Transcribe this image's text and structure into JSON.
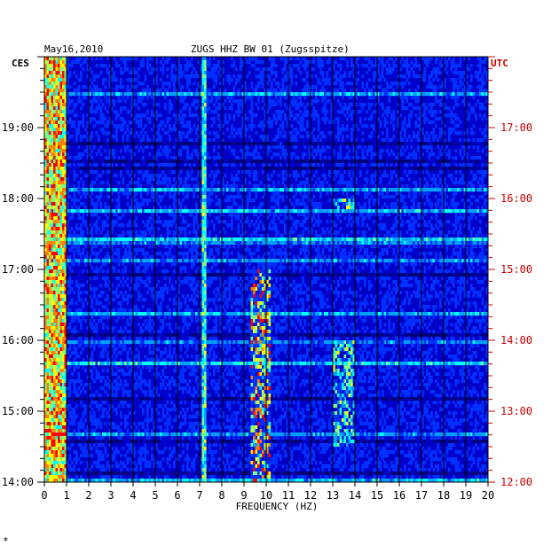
{
  "header": {
    "date": "May16,2010",
    "station": "ZUGS HHZ BW 01 (Zugsspitze)",
    "left_tz": "CES",
    "right_tz": "UTC"
  },
  "footer": {
    "mark": "*"
  },
  "colors": {
    "background": "#0000c8",
    "left_labels": "#000000",
    "right_labels": "#cc0000",
    "grid": "#000000"
  },
  "chart_data": {
    "type": "heatmap",
    "title": "ZUGS HHZ BW 01 (Zugsspitze)",
    "xlabel": "FREQUENCY (HZ)",
    "xlim": [
      0,
      20
    ],
    "x_ticks": [
      "0",
      "1",
      "2",
      "3",
      "4",
      "5",
      "6",
      "7",
      "8",
      "9",
      "10",
      "11",
      "12",
      "13",
      "14",
      "15",
      "16",
      "17",
      "18",
      "19",
      "20"
    ],
    "y_left_ticks": [
      "19:00",
      "18:00",
      "17:00",
      "16:00",
      "15:00",
      "14:00"
    ],
    "y_right_ticks": [
      "17:00",
      "16:00",
      "15:00",
      "14:00",
      "13:00",
      "12:00"
    ],
    "y_range_local": [
      "14:00",
      "20:00"
    ],
    "colormap": [
      "#00007a",
      "#0000c8",
      "#0030ff",
      "#00a0ff",
      "#00ffff",
      "#80ff80",
      "#ffff00",
      "#ff8000",
      "#ff0000"
    ],
    "features": [
      {
        "freq_hz": [
          0,
          1
        ],
        "time": "all",
        "level": "high"
      },
      {
        "freq_hz": [
          7.1,
          7.3
        ],
        "time": "all",
        "level": "medium"
      },
      {
        "freq_hz": [
          9.3,
          10.2
        ],
        "time": [
          "14:00",
          "17:00"
        ],
        "level": "high"
      },
      {
        "freq_hz": [
          13,
          14
        ],
        "time": [
          "14:30",
          "16:00"
        ],
        "level": "medium"
      },
      {
        "freq_hz": [
          13,
          14
        ],
        "time": [
          "17:50",
          "18:00"
        ],
        "level": "medium"
      }
    ]
  }
}
